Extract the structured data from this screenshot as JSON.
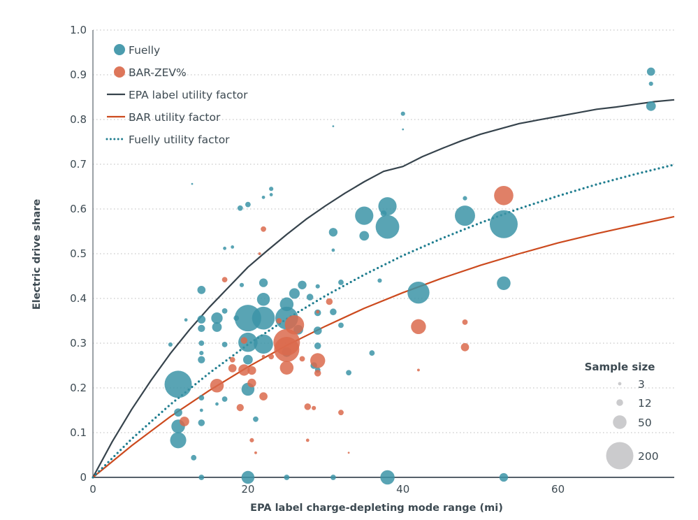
{
  "chart_data": {
    "type": "scatter",
    "title": "",
    "xlabel": "EPA label charge-depleting mode range (mi)",
    "ylabel": "Electric drive share",
    "xlim": [
      0,
      75
    ],
    "ylim": [
      0,
      1.0
    ],
    "x_ticks": [
      0,
      20,
      40,
      60
    ],
    "x_tick_labels": [
      "0",
      "20",
      "40",
      "60"
    ],
    "y_ticks": [
      0,
      0.1,
      0.2,
      0.3,
      0.4,
      0.5,
      0.6,
      0.7,
      0.8,
      0.9,
      1.0
    ],
    "y_tick_labels": [
      "0",
      "0.1",
      "0.2",
      "0.3",
      "0.4",
      "0.5",
      "0.6",
      "0.7",
      "0.8",
      "0.9",
      "1.0"
    ],
    "grid": "horizontal dotted",
    "legend_position": "top-left",
    "legend": [
      {
        "label": "Fuelly",
        "kind": "marker",
        "color": "#3c94a7"
      },
      {
        "label": "BAR-ZEV%",
        "kind": "marker",
        "color": "#da6a4c"
      },
      {
        "label": "EPA label utility factor",
        "kind": "solid-line",
        "color": "#36434c"
      },
      {
        "label": "BAR utility factor",
        "kind": "solid-line",
        "color": "#cc4a1e"
      },
      {
        "label": "Fuelly utility factor",
        "kind": "dotted-line",
        "color": "#1f7d8f"
      }
    ],
    "size_legend": {
      "title": "Sample size",
      "position": "bottom-right",
      "entries": [
        {
          "label": "3",
          "n": 3
        },
        {
          "label": "12",
          "n": 12
        },
        {
          "label": "50",
          "n": 50
        },
        {
          "label": "200",
          "n": 200
        }
      ],
      "color": "#cbcbcd"
    },
    "series": [
      {
        "name": "Fuelly",
        "kind": "bubble",
        "color": "#3c94a7",
        "points": [
          {
            "x": 11,
            "y": 0.208,
            "n": 200
          },
          {
            "x": 11,
            "y": 0.083,
            "n": 70
          },
          {
            "x": 11,
            "y": 0.114,
            "n": 50
          },
          {
            "x": 11,
            "y": 0.145,
            "n": 18
          },
          {
            "x": 13,
            "y": 0.044,
            "n": 8
          },
          {
            "x": 10,
            "y": 0.297,
            "n": 5
          },
          {
            "x": 12,
            "y": 0.352,
            "n": 3
          },
          {
            "x": 12.8,
            "y": 0.656,
            "n": 1
          },
          {
            "x": 14,
            "y": 0.419,
            "n": 18
          },
          {
            "x": 14,
            "y": 0.353,
            "n": 18
          },
          {
            "x": 14,
            "y": 0.333,
            "n": 14
          },
          {
            "x": 14,
            "y": 0.3,
            "n": 8
          },
          {
            "x": 14,
            "y": 0.278,
            "n": 5
          },
          {
            "x": 14,
            "y": 0.263,
            "n": 14
          },
          {
            "x": 14,
            "y": 0.178,
            "n": 8
          },
          {
            "x": 14,
            "y": 0.15,
            "n": 3
          },
          {
            "x": 14,
            "y": 0.122,
            "n": 12
          },
          {
            "x": 14,
            "y": 0.0,
            "n": 8
          },
          {
            "x": 16,
            "y": 0.356,
            "n": 35
          },
          {
            "x": 16,
            "y": 0.336,
            "n": 25
          },
          {
            "x": 16,
            "y": 0.164,
            "n": 3
          },
          {
            "x": 17,
            "y": 0.372,
            "n": 8
          },
          {
            "x": 17,
            "y": 0.297,
            "n": 8
          },
          {
            "x": 17,
            "y": 0.175,
            "n": 8
          },
          {
            "x": 17,
            "y": 0.512,
            "n": 3
          },
          {
            "x": 18.5,
            "y": 0.356,
            "n": 8
          },
          {
            "x": 18,
            "y": 0.515,
            "n": 3
          },
          {
            "x": 19,
            "y": 0.602,
            "n": 8
          },
          {
            "x": 19.2,
            "y": 0.43,
            "n": 5
          },
          {
            "x": 20,
            "y": 0.61,
            "n": 8
          },
          {
            "x": 20,
            "y": 0.356,
            "n": 190
          },
          {
            "x": 20,
            "y": 0.302,
            "n": 100
          },
          {
            "x": 20,
            "y": 0.263,
            "n": 25
          },
          {
            "x": 20,
            "y": 0.197,
            "n": 45
          },
          {
            "x": 20,
            "y": 0.0,
            "n": 45
          },
          {
            "x": 21,
            "y": 0.13,
            "n": 8
          },
          {
            "x": 22,
            "y": 0.626,
            "n": 3
          },
          {
            "x": 22,
            "y": 0.356,
            "n": 140
          },
          {
            "x": 22,
            "y": 0.298,
            "n": 100
          },
          {
            "x": 22,
            "y": 0.398,
            "n": 45
          },
          {
            "x": 22,
            "y": 0.435,
            "n": 20
          },
          {
            "x": 23,
            "y": 0.645,
            "n": 5
          },
          {
            "x": 23,
            "y": 0.632,
            "n": 3
          },
          {
            "x": 25,
            "y": 0.356,
            "n": 140
          },
          {
            "x": 25,
            "y": 0.387,
            "n": 50
          },
          {
            "x": 25,
            "y": 0.28,
            "n": 25
          },
          {
            "x": 25,
            "y": 0.0,
            "n": 8
          },
          {
            "x": 26,
            "y": 0.411,
            "n": 30
          },
          {
            "x": 26.5,
            "y": 0.33,
            "n": 25
          },
          {
            "x": 27,
            "y": 0.43,
            "n": 20
          },
          {
            "x": 28,
            "y": 0.403,
            "n": 12
          },
          {
            "x": 28.5,
            "y": 0.25,
            "n": 12
          },
          {
            "x": 29,
            "y": 0.427,
            "n": 5
          },
          {
            "x": 29,
            "y": 0.368,
            "n": 12
          },
          {
            "x": 29,
            "y": 0.328,
            "n": 18
          },
          {
            "x": 29,
            "y": 0.294,
            "n": 12
          },
          {
            "x": 29,
            "y": 0.24,
            "n": 8
          },
          {
            "x": 31,
            "y": 0.548,
            "n": 20
          },
          {
            "x": 31,
            "y": 0.508,
            "n": 3
          },
          {
            "x": 31,
            "y": 0.37,
            "n": 12
          },
          {
            "x": 31,
            "y": 0.0,
            "n": 8
          },
          {
            "x": 31,
            "y": 0.785,
            "n": 1
          },
          {
            "x": 32,
            "y": 0.436,
            "n": 8
          },
          {
            "x": 32,
            "y": 0.34,
            "n": 8
          },
          {
            "x": 33,
            "y": 0.234,
            "n": 8
          },
          {
            "x": 35,
            "y": 0.585,
            "n": 90
          },
          {
            "x": 35,
            "y": 0.54,
            "n": 25
          },
          {
            "x": 36,
            "y": 0.278,
            "n": 8
          },
          {
            "x": 37,
            "y": 0.44,
            "n": 5
          },
          {
            "x": 38,
            "y": 0.606,
            "n": 90
          },
          {
            "x": 38,
            "y": 0.56,
            "n": 150
          },
          {
            "x": 38,
            "y": 0.0,
            "n": 55
          },
          {
            "x": 37.5,
            "y": 0.59,
            "n": 10
          },
          {
            "x": 40,
            "y": 0.813,
            "n": 5
          },
          {
            "x": 40,
            "y": 0.778,
            "n": 1
          },
          {
            "x": 42,
            "y": 0.413,
            "n": 130
          },
          {
            "x": 48,
            "y": 0.585,
            "n": 110
          },
          {
            "x": 48,
            "y": 0.624,
            "n": 5
          },
          {
            "x": 53,
            "y": 0.566,
            "n": 210
          },
          {
            "x": 53,
            "y": 0.434,
            "n": 50
          },
          {
            "x": 53,
            "y": 0.0,
            "n": 20
          },
          {
            "x": 72,
            "y": 0.907,
            "n": 18
          },
          {
            "x": 72,
            "y": 0.88,
            "n": 5
          },
          {
            "x": 72,
            "y": 0.83,
            "n": 25
          }
        ]
      },
      {
        "name": "BAR-ZEV%",
        "kind": "bubble",
        "color": "#da6a4c",
        "points": [
          {
            "x": 11.8,
            "y": 0.125,
            "n": 25
          },
          {
            "x": 16,
            "y": 0.205,
            "n": 50
          },
          {
            "x": 17,
            "y": 0.442,
            "n": 8
          },
          {
            "x": 18,
            "y": 0.244,
            "n": 18
          },
          {
            "x": 18,
            "y": 0.263,
            "n": 8
          },
          {
            "x": 19,
            "y": 0.156,
            "n": 14
          },
          {
            "x": 19.5,
            "y": 0.24,
            "n": 35
          },
          {
            "x": 19.5,
            "y": 0.306,
            "n": 12
          },
          {
            "x": 20.5,
            "y": 0.239,
            "n": 20
          },
          {
            "x": 20.5,
            "y": 0.211,
            "n": 20
          },
          {
            "x": 20.5,
            "y": 0.083,
            "n": 5
          },
          {
            "x": 21,
            "y": 0.055,
            "n": 2
          },
          {
            "x": 21.5,
            "y": 0.5,
            "n": 2
          },
          {
            "x": 22,
            "y": 0.555,
            "n": 8
          },
          {
            "x": 22,
            "y": 0.181,
            "n": 18
          },
          {
            "x": 22,
            "y": 0.27,
            "n": 3
          },
          {
            "x": 23,
            "y": 0.27,
            "n": 8
          },
          {
            "x": 24,
            "y": 0.35,
            "n": 8
          },
          {
            "x": 25,
            "y": 0.302,
            "n": 190
          },
          {
            "x": 25,
            "y": 0.286,
            "n": 170
          },
          {
            "x": 25,
            "y": 0.245,
            "n": 50
          },
          {
            "x": 26,
            "y": 0.341,
            "n": 100
          },
          {
            "x": 27,
            "y": 0.265,
            "n": 8
          },
          {
            "x": 27.7,
            "y": 0.158,
            "n": 12
          },
          {
            "x": 27.7,
            "y": 0.083,
            "n": 3
          },
          {
            "x": 28.5,
            "y": 0.155,
            "n": 5
          },
          {
            "x": 29,
            "y": 0.261,
            "n": 60
          },
          {
            "x": 29,
            "y": 0.233,
            "n": 12
          },
          {
            "x": 29,
            "y": 0.37,
            "n": 3
          },
          {
            "x": 30.5,
            "y": 0.393,
            "n": 12
          },
          {
            "x": 32,
            "y": 0.145,
            "n": 8
          },
          {
            "x": 33,
            "y": 0.055,
            "n": 1
          },
          {
            "x": 42,
            "y": 0.337,
            "n": 60
          },
          {
            "x": 42,
            "y": 0.24,
            "n": 2
          },
          {
            "x": 48,
            "y": 0.347,
            "n": 8
          },
          {
            "x": 48,
            "y": 0.291,
            "n": 18
          },
          {
            "x": 53,
            "y": 0.63,
            "n": 100
          }
        ]
      }
    ],
    "curves": [
      {
        "name": "EPA label utility factor",
        "style": "solid",
        "color": "#36434c",
        "x": [
          0,
          2.5,
          5,
          7.5,
          10,
          12.5,
          15,
          17.5,
          20,
          22.5,
          25,
          27.5,
          30,
          32.5,
          35,
          37.5,
          40,
          42.5,
          45,
          47.5,
          50,
          52.5,
          55,
          57.5,
          60,
          62.5,
          65,
          67.5,
          70,
          72.5,
          75
        ],
        "y": [
          0,
          0.08,
          0.152,
          0.217,
          0.277,
          0.331,
          0.38,
          0.425,
          0.47,
          0.507,
          0.543,
          0.577,
          0.607,
          0.635,
          0.661,
          0.684,
          0.695,
          0.717,
          0.735,
          0.752,
          0.767,
          0.779,
          0.791,
          0.799,
          0.807,
          0.815,
          0.823,
          0.828,
          0.834,
          0.84,
          0.844
        ]
      },
      {
        "name": "BAR utility factor",
        "style": "solid",
        "color": "#cc4a1e",
        "x": [
          0,
          5,
          10,
          15,
          20,
          25,
          30,
          35,
          40,
          45,
          50,
          55,
          60,
          65,
          70,
          75
        ],
        "y": [
          0,
          0.071,
          0.136,
          0.194,
          0.247,
          0.295,
          0.338,
          0.378,
          0.413,
          0.445,
          0.474,
          0.5,
          0.524,
          0.545,
          0.564,
          0.583
        ]
      },
      {
        "name": "Fuelly utility factor",
        "style": "dotted",
        "color": "#1f7d8f",
        "x": [
          0,
          5,
          10,
          15,
          20,
          25,
          30,
          35,
          40,
          45,
          50,
          55,
          60,
          65,
          70,
          75
        ],
        "y": [
          0,
          0.086,
          0.163,
          0.233,
          0.297,
          0.354,
          0.406,
          0.453,
          0.496,
          0.534,
          0.569,
          0.601,
          0.629,
          0.655,
          0.678,
          0.699
        ]
      }
    ]
  }
}
